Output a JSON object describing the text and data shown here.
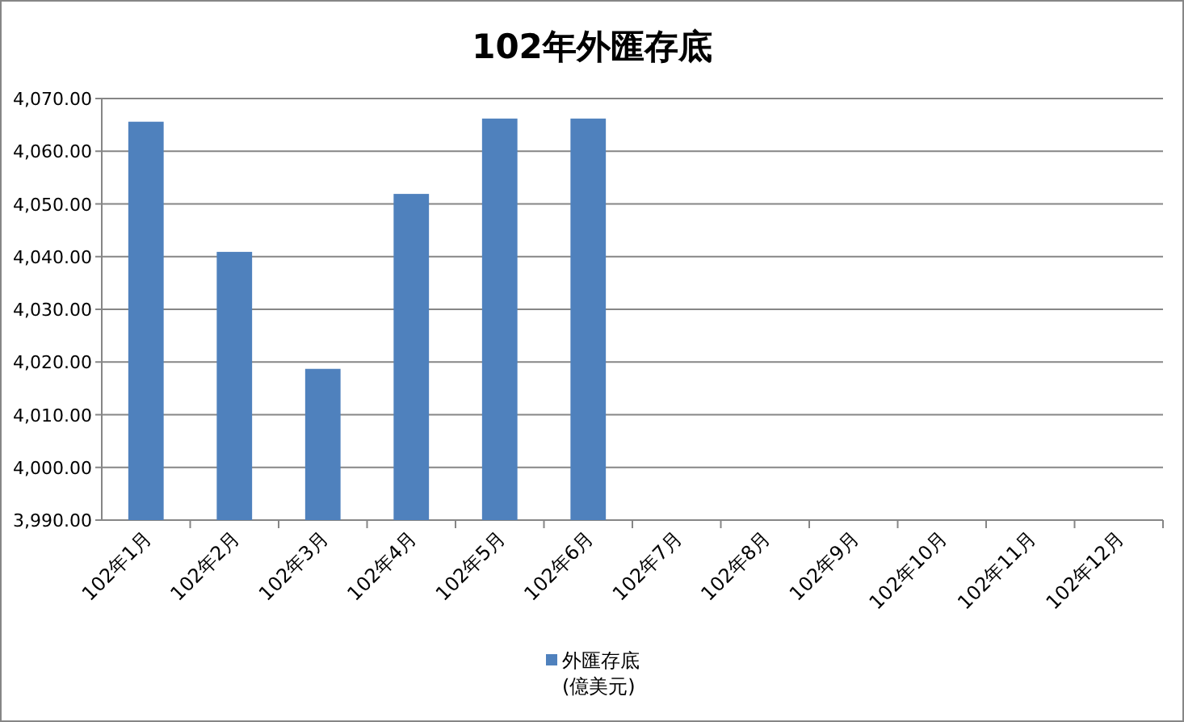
{
  "chart_data": {
    "type": "bar",
    "title": "102年外匯存底",
    "categories": [
      "102年1月",
      "102年2月",
      "102年3月",
      "102年4月",
      "102年5月",
      "102年6月",
      "102年7月",
      "102年8月",
      "102年9月",
      "102年10月",
      "102年11月",
      "102年12月"
    ],
    "series": [
      {
        "name": "外匯存底 (億美元)",
        "color": "#4f81bd",
        "values": [
          4065.6,
          4040.9,
          4018.7,
          4051.9,
          4066.2,
          4066.2,
          null,
          null,
          null,
          null,
          null,
          null
        ]
      }
    ],
    "ylim": [
      3990,
      4070
    ],
    "yticks": [
      {
        "value": 3990,
        "label": "3,990.00"
      },
      {
        "value": 4000,
        "label": "4,000.00"
      },
      {
        "value": 4010,
        "label": "4,010.00"
      },
      {
        "value": 4020,
        "label": "4,020.00"
      },
      {
        "value": 4030,
        "label": "4,030.00"
      },
      {
        "value": 4040,
        "label": "4,040.00"
      },
      {
        "value": 4050,
        "label": "4,050.00"
      },
      {
        "value": 4060,
        "label": "4,060.00"
      },
      {
        "value": 4070,
        "label": "4,070.00"
      }
    ],
    "grid": "y",
    "legend": "bottom"
  }
}
